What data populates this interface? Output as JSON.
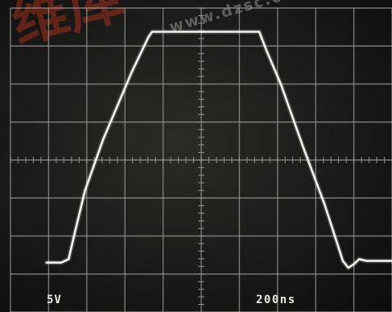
{
  "readouts": {
    "volts_per_div": "5V",
    "time_per_div": "200ns"
  },
  "watermark": {
    "logo": "维库",
    "url": "www.dzsc.com"
  },
  "colors": {
    "screen": "#1a1b18",
    "grid": "#9a9a94",
    "trace": "#f4f4ee"
  },
  "chart_data": {
    "type": "line",
    "title": "",
    "xlabel": "",
    "ylabel": "",
    "x_divisions": 10,
    "y_divisions": 8,
    "grid": true,
    "xlim": [
      0,
      10
    ],
    "ylim": [
      0,
      8
    ],
    "series": [
      {
        "x": [
          0,
          0.35,
          0.55,
          0.75,
          1.0,
          1.5,
          1.9,
          2.3,
          2.75,
          2.85,
          3.0,
          5.5,
          5.8,
          6.0,
          6.4,
          7.0,
          7.6,
          7.95,
          8.1,
          8.25,
          8.4,
          8.55,
          8.75,
          9.0,
          10.0
        ],
        "y": [
          0.0,
          0.0,
          0.1,
          1.0,
          2.1,
          3.6,
          4.6,
          5.6,
          6.6,
          6.75,
          6.75,
          6.75,
          6.75,
          6.2,
          5.2,
          3.4,
          1.7,
          0.55,
          0.05,
          -0.15,
          -0.05,
          0.1,
          0.05,
          0.05,
          0.05
        ]
      }
    ]
  }
}
